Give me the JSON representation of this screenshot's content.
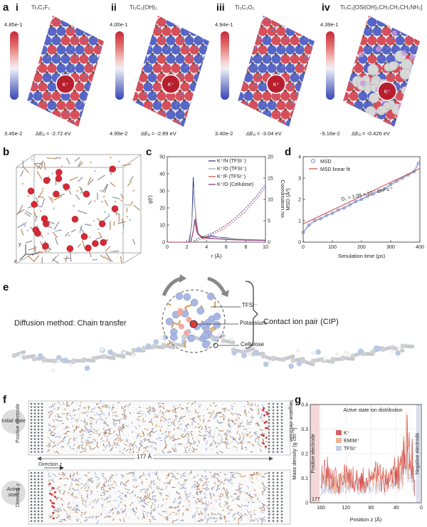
{
  "panel_a": {
    "label": "a",
    "subpanels": [
      {
        "roman": "i",
        "formula": "Ti₃C₂F₂",
        "cbar_max": "4.85e-1",
        "cbar_min": "3.45e-2",
        "delta_e": "ΔEₐ = -2.72 eV"
      },
      {
        "roman": "ii",
        "formula": "Ti₃C₂(OH)₂",
        "cbar_max": "4.00e-1",
        "cbar_min": "4.99e-2",
        "delta_e": "ΔEₐ = -2.89 eV"
      },
      {
        "roman": "iii",
        "formula": "Ti₃C₂O₂",
        "cbar_max": "4.94e-1",
        "cbar_min": "3.40e-2",
        "delta_e": "ΔEₐ = -3.04 eV"
      },
      {
        "roman": "iv",
        "formula": "Ti₃C₂[OSi(OH)₂CH₂CH₂CH₂NH₃]",
        "cbar_max": "4.39e-1",
        "cbar_min": "-5.16e-2",
        "delta_e": "ΔEₐ = -0.426 eV"
      }
    ],
    "ion_label": "K⁺"
  },
  "panel_b": {
    "label": "b",
    "axes": {
      "y": "y",
      "z": "z",
      "x": "x"
    }
  },
  "panel_c": {
    "label": "c"
  },
  "panel_d": {
    "label": "d",
    "annotation": "D꜀ = 1.09 × 10⁻⁷ cm² s⁻¹"
  },
  "panel_e": {
    "label": "e",
    "left_text": "Diffusion method: Chain transfer",
    "right_text": "Contact ion pair (CIP)",
    "callouts": [
      "TFSI⁻",
      "Potassium",
      "Cellulose"
    ]
  },
  "panel_f": {
    "label": "f",
    "initial_state": "Initial state",
    "active_state": "Active state",
    "positive_electrode": "Positive electrode",
    "negative_electrode": "Negative electrode",
    "distance": "177 Å",
    "direction_z": "Direction z",
    "direction_y": "Direction y"
  },
  "panel_g": {
    "label": "g"
  },
  "chart_data": [
    {
      "type": "line",
      "panel": "c",
      "xlabel": "r (Å)",
      "ylabel": "g(r)",
      "y2label": "Coordination no.",
      "xlim": [
        0,
        10
      ],
      "ylim": [
        0,
        50
      ],
      "y2lim": [
        0,
        20
      ],
      "xticks": [
        0,
        2,
        4,
        6,
        8,
        10
      ],
      "yticks": [
        0,
        10,
        20,
        30,
        40,
        50
      ],
      "y2ticks": [
        0,
        5,
        10,
        15,
        20
      ],
      "legend_position": "top-right",
      "series": [
        {
          "name": "K⁺/N (TFSI⁻)",
          "color": "#2b2f8f",
          "x": [
            0,
            2.2,
            2.5,
            2.65,
            2.8,
            3.1,
            3.5,
            4,
            4.5,
            5,
            6,
            7,
            8,
            9,
            10
          ],
          "y": [
            0,
            0,
            10,
            38,
            22,
            5,
            2.5,
            3,
            3.5,
            3,
            2.5,
            1.8,
            1.5,
            1.3,
            1.2
          ]
        },
        {
          "name": "K⁺/O (TFSI⁻)",
          "color": "#9aa0a6",
          "x": [
            0,
            2.3,
            2.55,
            2.7,
            2.9,
            3.2,
            3.8,
            4.5,
            5.5,
            6.5,
            8,
            10
          ],
          "y": [
            0,
            0,
            15,
            32,
            15,
            4,
            3,
            4,
            2.5,
            2,
            1.5,
            1.2
          ]
        },
        {
          "name": "K⁺/F (TFSI⁻)",
          "color": "#c9474a",
          "x": [
            0,
            2.4,
            2.7,
            2.85,
            3.1,
            3.6,
            4.2,
            5,
            6,
            7,
            8,
            10
          ],
          "y": [
            0,
            0,
            8,
            14,
            5,
            2,
            2.2,
            2,
            1.6,
            1.3,
            1.2,
            1.1
          ]
        },
        {
          "name": "K⁺/O (Cellulose)",
          "color": "#7a2a7e",
          "x": [
            0,
            2.4,
            2.65,
            2.8,
            3,
            3.5,
            4.2,
            5,
            6,
            8,
            10
          ],
          "y": [
            0,
            0,
            6,
            13,
            6,
            3,
            2.5,
            2,
            1.5,
            1.2,
            1
          ]
        },
        {
          "name": "",
          "color": "#2b2f8f",
          "dashed": true,
          "axis": "y2",
          "x": [
            0,
            2.6,
            3,
            4,
            5,
            6,
            7,
            8,
            9,
            10
          ],
          "y": [
            0,
            0,
            0.8,
            1.6,
            2.6,
            4,
            5.8,
            8,
            10.5,
            13.5
          ]
        },
        {
          "name": "",
          "color": "#c9474a",
          "dashed": true,
          "axis": "y2",
          "x": [
            0,
            2.7,
            3.2,
            4,
            5,
            6,
            7,
            8,
            9,
            10
          ],
          "y": [
            0,
            0,
            0.5,
            1.2,
            2.2,
            3.5,
            5.2,
            7.3,
            9.8,
            12.8
          ]
        }
      ]
    },
    {
      "type": "scatter",
      "panel": "d",
      "xlabel": "Simulation time (ps)",
      "ylabel": "MSD (Å²)",
      "xlim": [
        0,
        400
      ],
      "ylim": [
        0,
        4
      ],
      "xticks": [
        0,
        100,
        200,
        300,
        400
      ],
      "yticks": [
        0,
        1,
        2,
        3,
        4
      ],
      "legend_position": "top-left",
      "series": [
        {
          "name": "MSD",
          "color": "#5b6bb5",
          "x": [
            0,
            20,
            40,
            60,
            80,
            100,
            120,
            140,
            160,
            180,
            200,
            220,
            240,
            260,
            280,
            300,
            320,
            340,
            360,
            380,
            395
          ],
          "y": [
            0.45,
            0.8,
            1.0,
            1.1,
            1.25,
            1.35,
            1.5,
            1.6,
            1.75,
            1.9,
            2.0,
            2.15,
            2.25,
            2.4,
            2.5,
            2.7,
            2.85,
            3.0,
            3.15,
            3.3,
            3.7
          ]
        },
        {
          "name": "MSD linear fit",
          "color": "#d04545",
          "x": [
            0,
            400
          ],
          "y": [
            0.85,
            3.45
          ]
        }
      ]
    },
    {
      "type": "bar",
      "panel": "g",
      "title": "Active state ion distribution",
      "xlabel": "Position z (Å)",
      "ylabel": "Mass density (g cm⁻³)",
      "xlim": [
        177,
        0
      ],
      "ylim": [
        0,
        0.4
      ],
      "xticks": [
        160,
        120,
        80,
        40,
        0
      ],
      "yticks": [
        0,
        0.1,
        0.2,
        0.3,
        0.4
      ],
      "legend_position": "left",
      "x_start_label": "177",
      "region_labels": [
        "Positive electrode",
        "Negative electrode"
      ],
      "series": [
        {
          "name": "K⁺",
          "color": "#d03b3b"
        },
        {
          "name": "EMIM⁺",
          "color": "#e8a27a"
        },
        {
          "name": "TFSI⁻",
          "color": "#b9bfe0"
        }
      ],
      "profile": {
        "x": [
          160,
          150,
          140,
          130,
          120,
          110,
          100,
          90,
          80,
          70,
          60,
          50,
          40,
          30,
          25,
          20,
          15,
          10
        ],
        "y": [
          0.1,
          0.13,
          0.1,
          0.09,
          0.12,
          0.1,
          0.11,
          0.09,
          0.1,
          0.12,
          0.1,
          0.11,
          0.13,
          0.15,
          0.32,
          0.21,
          0.2,
          0.05
        ]
      }
    }
  ]
}
